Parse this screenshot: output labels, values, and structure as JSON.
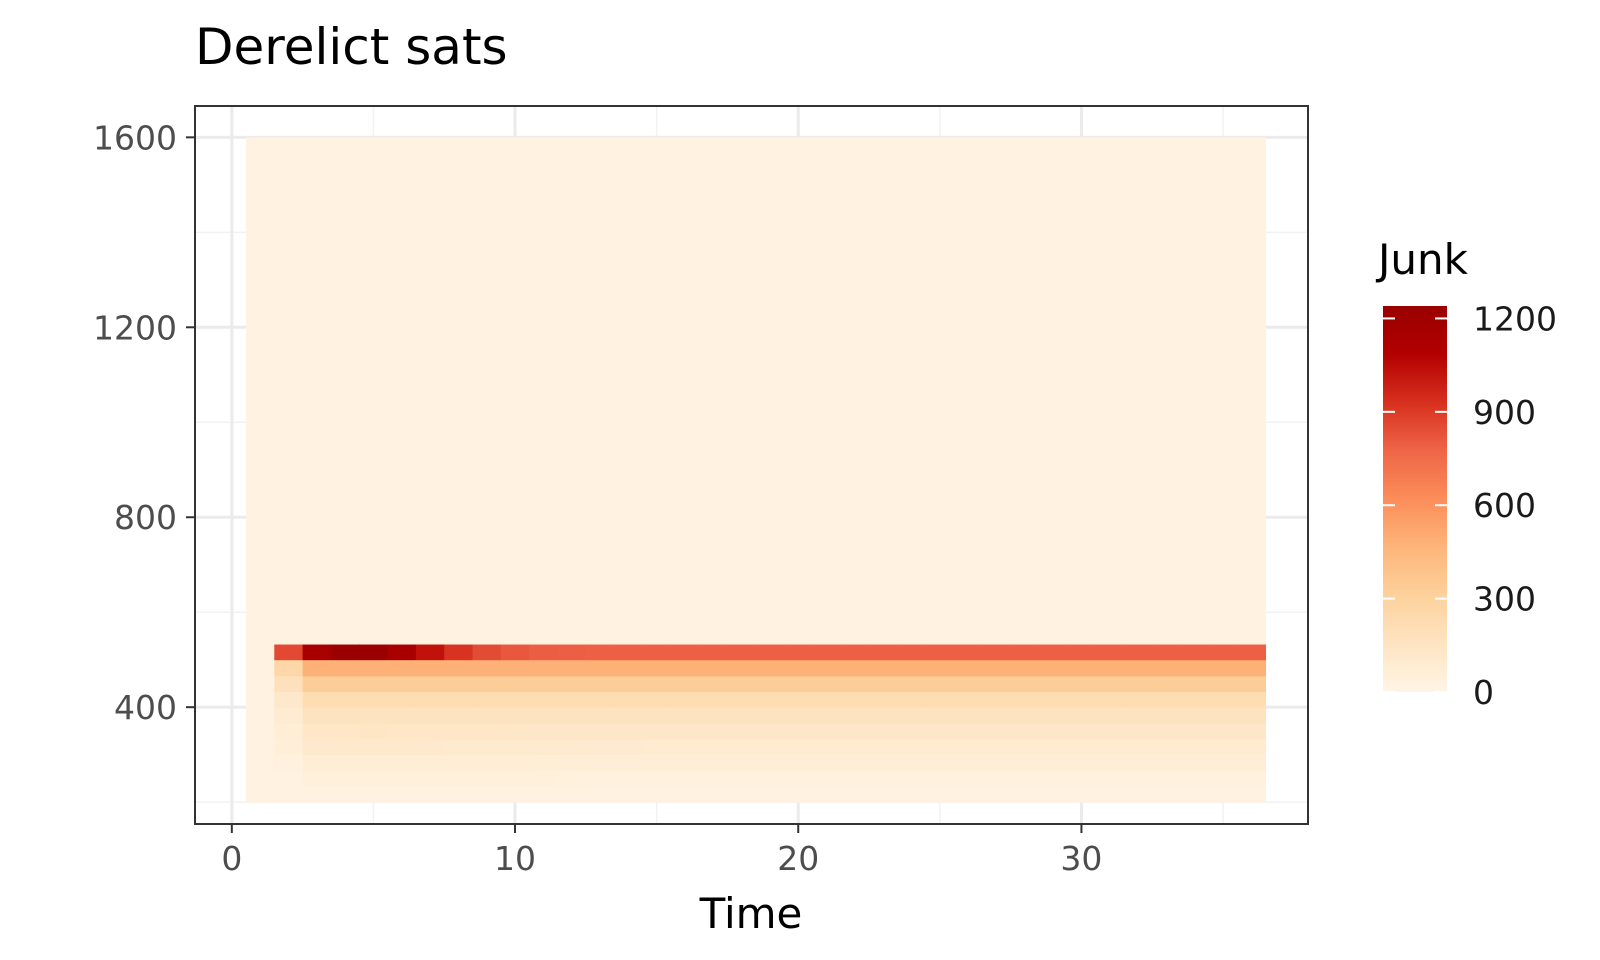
{
  "chart_data": {
    "type": "heatmap",
    "title": "Derelict sats",
    "xlabel": "Time",
    "ylabel": "",
    "xlim": [
      -1.3,
      38
    ],
    "ylim": [
      154,
      1666
    ],
    "x_ticks": [
      0,
      10,
      20,
      30
    ],
    "y_ticks": [
      400,
      800,
      1200,
      1600
    ],
    "legend": {
      "title": "Junk",
      "position": "right",
      "min": 0,
      "max": 1240,
      "ticks": [
        0,
        300,
        600,
        900,
        1200
      ]
    },
    "colormap": [
      "#fff5e6",
      "#fee4c2",
      "#fdd19c",
      "#fdb57a",
      "#fc8d59",
      "#ef6548",
      "#d7301f",
      "#b30000",
      "#990000"
    ],
    "grid": true,
    "cells": {
      "x": [
        1,
        2,
        3,
        4,
        5,
        6,
        7,
        8,
        9,
        10,
        11,
        12,
        13,
        14,
        15,
        16,
        17,
        18,
        19,
        20,
        21,
        22,
        23,
        24,
        25,
        26,
        27,
        28,
        29,
        30,
        31,
        32,
        33,
        34,
        35,
        36
      ],
      "y_bins": [
        [
          200,
          233
        ],
        [
          233,
          266
        ],
        [
          266,
          300
        ],
        [
          300,
          333
        ],
        [
          333,
          366
        ],
        [
          366,
          400
        ],
        [
          400,
          433
        ],
        [
          433,
          466
        ],
        [
          466,
          500
        ],
        [
          500,
          533
        ],
        [
          533,
          1600
        ]
      ],
      "row_profiles": {
        "200-233": 20,
        "233-266": 40,
        "266-300": 65,
        "300-333": 95,
        "333-366": 125,
        "366-400": 160,
        "400-433": 215,
        "433-466": 330,
        "466-500": 480,
        "500-533": 790,
        "533-1600": 0
      },
      "peak_time": 4.5,
      "peak_value": 1240,
      "steady_top_value": 790,
      "background_value": 25
    }
  }
}
